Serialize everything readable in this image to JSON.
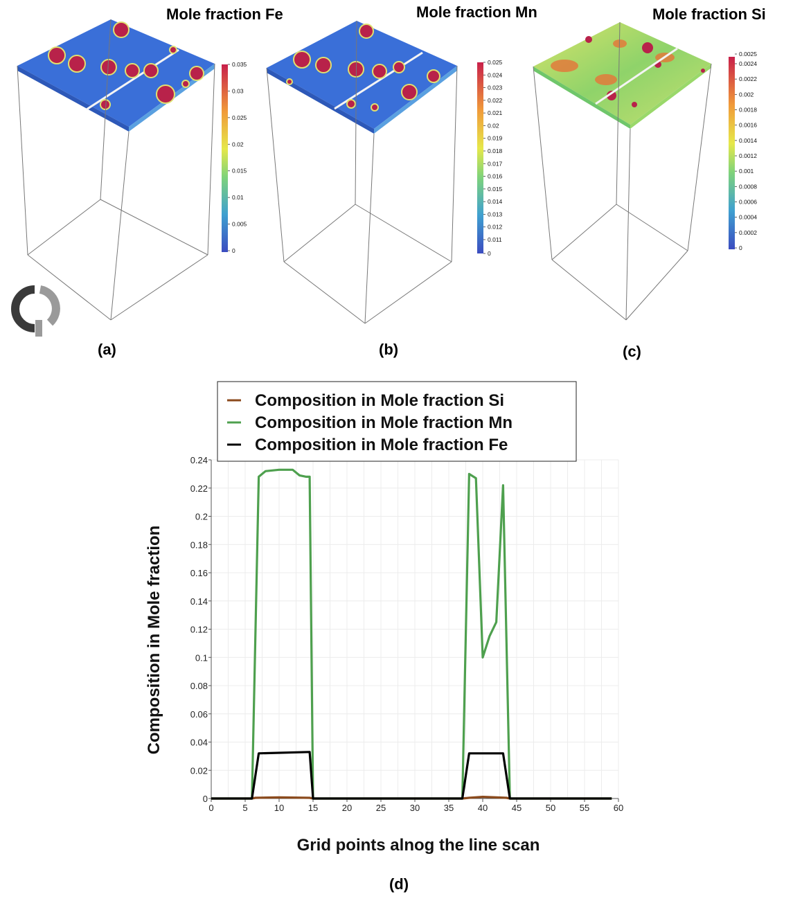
{
  "panels": [
    {
      "id": "a",
      "title": "Mole fraction Fe",
      "letter": "(a)",
      "colorbar": {
        "min": 0,
        "max": 0.035,
        "ticks": [
          "0.035",
          "0.03",
          "0.025",
          "0.02",
          "0.015",
          "0.01",
          "0.005",
          "0"
        ]
      }
    },
    {
      "id": "b",
      "title": "Mole fraction Mn",
      "letter": "(b)",
      "colorbar": {
        "min": 0,
        "max": 0.025,
        "ticks": [
          "0.025",
          "0.024",
          "0.023",
          "0.022",
          "0.021",
          "0.02",
          "0.019",
          "0.018",
          "0.017",
          "0.016",
          "0.015",
          "0.014",
          "0.013",
          "0.012",
          "0.011",
          "0"
        ]
      }
    },
    {
      "id": "c",
      "title": "Mole fraction Si",
      "letter": "(c)",
      "colorbar": {
        "min": 0,
        "max": 0.0025,
        "ticks": [
          "0.0025",
          "0.0024",
          "0.0022",
          "0.002",
          "0.0018",
          "0.0016",
          "0.0014",
          "0.0012",
          "0.001",
          "0.0008",
          "0.0006",
          "0.0004",
          "0.0002",
          "0"
        ]
      }
    }
  ],
  "chart_data": {
    "type": "line",
    "letter": "(d)",
    "xlabel": "Grid points alnog the line scan",
    "ylabel": "Composition in Mole fraction",
    "xlim": [
      0,
      60
    ],
    "ylim": [
      0,
      0.24
    ],
    "xticks": [
      0,
      5,
      10,
      15,
      20,
      25,
      30,
      35,
      40,
      45,
      50,
      55,
      60
    ],
    "yticks": [
      "0",
      "0.02",
      "0.04",
      "0.06",
      "0.08",
      "0.1",
      "0.12",
      "0.14",
      "0.16",
      "0.18",
      "0.2",
      "0.22",
      "0.24"
    ],
    "grid": true,
    "legend_position": "top",
    "series": [
      {
        "name": "Composition in Mole fraction Si",
        "color": "#8b4a1c",
        "x": [
          0,
          6,
          6.5,
          10,
          14.5,
          15,
          37,
          38,
          40,
          42,
          43.5,
          44,
          59
        ],
        "y": [
          0,
          0,
          0.0005,
          0.0008,
          0.0005,
          0,
          0,
          0.0005,
          0.0012,
          0.0008,
          0.0005,
          0,
          0
        ]
      },
      {
        "name": "Composition in Mole fraction Mn",
        "color": "#4ea04e",
        "x": [
          0,
          6,
          7,
          8,
          10,
          12,
          13,
          14,
          14.5,
          15,
          37,
          38,
          39,
          40,
          41,
          42,
          43,
          44,
          59
        ],
        "y": [
          0,
          0,
          0.228,
          0.232,
          0.233,
          0.233,
          0.229,
          0.228,
          0.228,
          0,
          0,
          0.23,
          0.227,
          0.1,
          0.115,
          0.125,
          0.222,
          0,
          0
        ]
      },
      {
        "name": "Composition in Mole fraction Fe",
        "color": "#000000",
        "x": [
          0,
          6,
          7,
          14.5,
          15,
          37,
          38,
          43,
          44,
          59
        ],
        "y": [
          0,
          0,
          0.032,
          0.033,
          0,
          0,
          0.032,
          0.032,
          0,
          0
        ]
      }
    ]
  }
}
